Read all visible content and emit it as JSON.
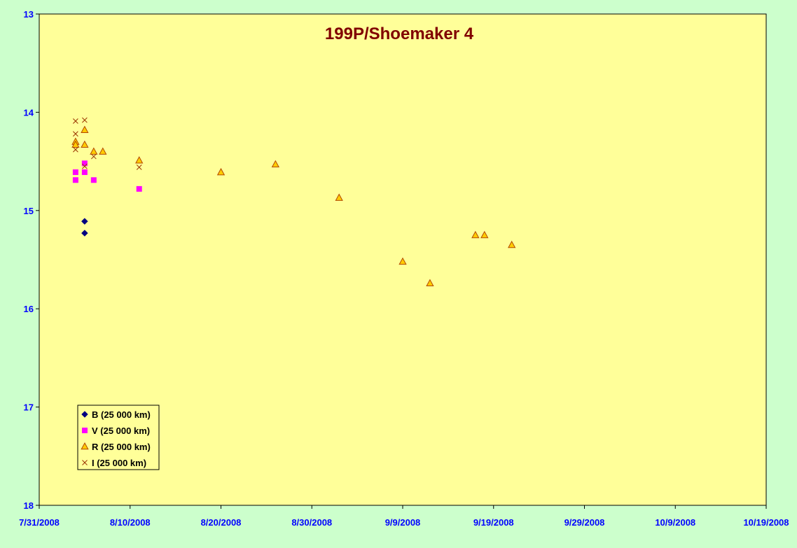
{
  "chart_data": {
    "type": "scatter",
    "title": "199P/Shoemaker 4",
    "xlabel": "",
    "ylabel": "",
    "x_axis": {
      "min": "2008-07-31",
      "max": "2008-10-19",
      "tick_labels": [
        "7/31/2008",
        "8/10/2008",
        "8/20/2008",
        "8/30/2008",
        "9/9/2008",
        "9/19/2008",
        "9/29/2008",
        "10/9/2008",
        "10/19/2008"
      ]
    },
    "y_axis": {
      "min": 13,
      "max": 18,
      "reversed": true,
      "tick_labels": [
        "13",
        "14",
        "15",
        "16",
        "17",
        "18"
      ]
    },
    "grid": false,
    "legend_position": "bottom-left",
    "colors": {
      "plot_background": "#ffff99",
      "page_background": "#ccffcc",
      "title": "#800000",
      "axis_labels": "#0000ff",
      "B": "#000080",
      "V": "#ff00ff",
      "R_fill": "#ffcc00",
      "R_edge": "#b34700",
      "I": "#993300"
    },
    "series": [
      {
        "name": "B (25 000 km)",
        "marker": "diamond",
        "points": [
          {
            "x": "2008-08-05",
            "y": 15.11
          },
          {
            "x": "2008-08-05",
            "y": 15.23
          }
        ]
      },
      {
        "name": "V (25 000 km)",
        "marker": "square",
        "points": [
          {
            "x": "2008-08-04",
            "y": 14.61
          },
          {
            "x": "2008-08-04",
            "y": 14.69
          },
          {
            "x": "2008-08-05",
            "y": 14.52
          },
          {
            "x": "2008-08-05",
            "y": 14.61
          },
          {
            "x": "2008-08-06",
            "y": 14.69
          },
          {
            "x": "2008-08-11",
            "y": 14.78
          }
        ]
      },
      {
        "name": "R (25 000 km)",
        "marker": "triangle",
        "points": [
          {
            "x": "2008-08-04",
            "y": 14.3
          },
          {
            "x": "2008-08-04",
            "y": 14.33
          },
          {
            "x": "2008-08-05",
            "y": 14.18
          },
          {
            "x": "2008-08-05",
            "y": 14.33
          },
          {
            "x": "2008-08-06",
            "y": 14.4
          },
          {
            "x": "2008-08-07",
            "y": 14.4
          },
          {
            "x": "2008-08-11",
            "y": 14.49
          },
          {
            "x": "2008-08-20",
            "y": 14.61
          },
          {
            "x": "2008-08-26",
            "y": 14.53
          },
          {
            "x": "2008-09-02",
            "y": 14.87
          },
          {
            "x": "2008-09-09",
            "y": 15.52
          },
          {
            "x": "2008-09-12",
            "y": 15.74
          },
          {
            "x": "2008-09-17",
            "y": 15.25
          },
          {
            "x": "2008-09-18",
            "y": 15.25
          },
          {
            "x": "2008-09-21",
            "y": 15.35
          }
        ]
      },
      {
        "name": "I (25 000 km)",
        "marker": "x",
        "points": [
          {
            "x": "2008-08-04",
            "y": 14.09
          },
          {
            "x": "2008-08-04",
            "y": 14.22
          },
          {
            "x": "2008-08-04",
            "y": 14.38
          },
          {
            "x": "2008-08-05",
            "y": 14.08
          },
          {
            "x": "2008-08-05",
            "y": 14.55
          },
          {
            "x": "2008-08-06",
            "y": 14.45
          },
          {
            "x": "2008-08-11",
            "y": 14.56
          }
        ]
      }
    ]
  }
}
